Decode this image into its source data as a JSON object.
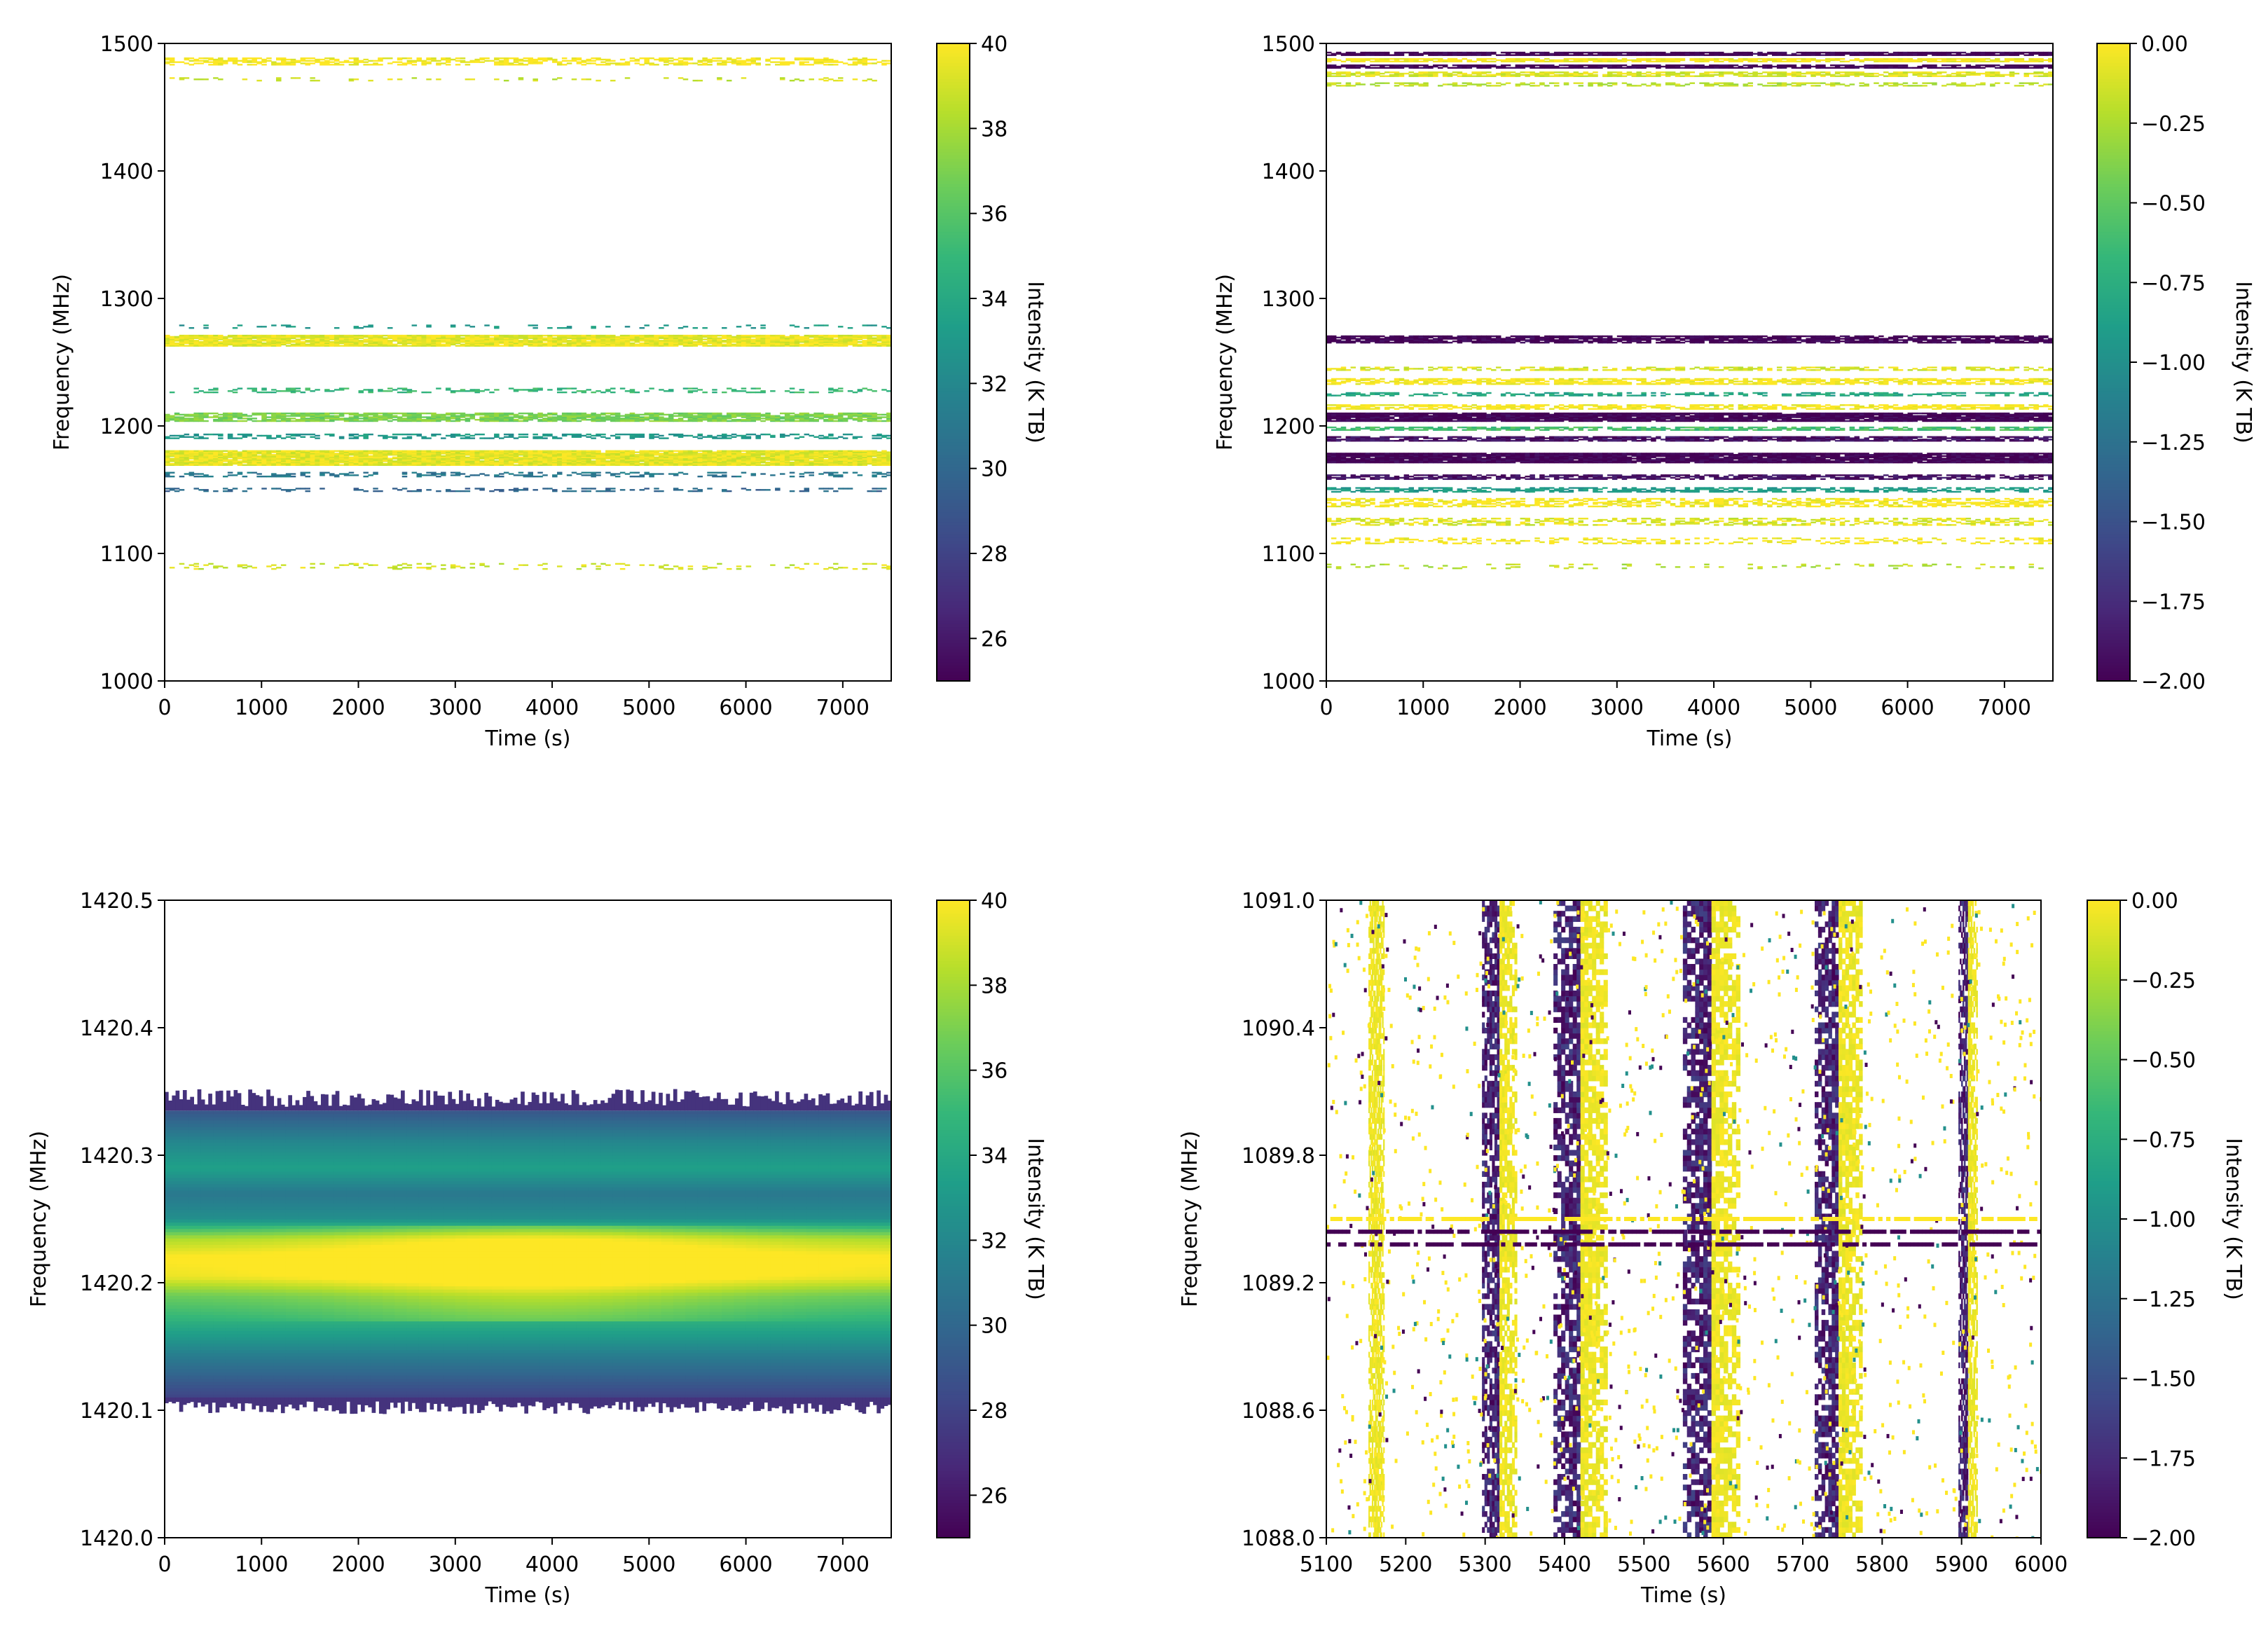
{
  "chart_data": [
    {
      "type": "heatmap",
      "panel": "top-left",
      "xlabel": "Time (s)",
      "ylabel": "Frequency (MHz)",
      "xlim": [
        0,
        7500
      ],
      "ylim": [
        1000,
        1500
      ],
      "xticks": [
        0,
        1000,
        2000,
        3000,
        4000,
        5000,
        6000,
        7000
      ],
      "yticks": [
        1000,
        1100,
        1200,
        1300,
        1400,
        1500
      ],
      "colorbar": {
        "label": "Intensity (K TB)",
        "range": [
          25,
          40
        ],
        "ticks": [
          "26",
          "28",
          "30",
          "32",
          "34",
          "36",
          "38",
          "40"
        ],
        "tick_values": [
          26,
          28,
          30,
          32,
          34,
          36,
          38,
          40
        ]
      },
      "colormap": "viridis",
      "bands": [
        {
          "center": 1486,
          "width": 6,
          "value": 40,
          "density": 0.55
        },
        {
          "center": 1472,
          "width": 3,
          "value": 39,
          "density": 0.15
        },
        {
          "center": 1267,
          "width": 9,
          "value": 39.5,
          "density": 0.95
        },
        {
          "center": 1278,
          "width": 3,
          "value": 33,
          "density": 0.12
        },
        {
          "center": 1228,
          "width": 4,
          "value": 35,
          "density": 0.3
        },
        {
          "center": 1207,
          "width": 7,
          "value": 37,
          "density": 0.8
        },
        {
          "center": 1192,
          "width": 4,
          "value": 33,
          "density": 0.45
        },
        {
          "center": 1175,
          "width": 12,
          "value": 39.5,
          "density": 0.97
        },
        {
          "center": 1162,
          "width": 4,
          "value": 31,
          "density": 0.35
        },
        {
          "center": 1150,
          "width": 3,
          "value": 30,
          "density": 0.3
        },
        {
          "center": 1090,
          "width": 5,
          "value": 39,
          "density": 0.15
        }
      ]
    },
    {
      "type": "heatmap",
      "panel": "top-right",
      "xlabel": "Time (s)",
      "ylabel": "Frequency (MHz)",
      "xlim": [
        0,
        7500
      ],
      "ylim": [
        1000,
        1500
      ],
      "xticks": [
        0,
        1000,
        2000,
        3000,
        4000,
        5000,
        6000,
        7000
      ],
      "yticks": [
        1000,
        1100,
        1200,
        1300,
        1400,
        1500
      ],
      "colorbar": {
        "label": "Intensity (K TB)",
        "range": [
          -2.0,
          0.0
        ],
        "ticks": [
          "0.00",
          "−0.25",
          "−0.50",
          "−0.75",
          "−1.00",
          "−1.25",
          "−1.50",
          "−1.75",
          "−2.00"
        ],
        "tick_values": [
          0.0,
          -0.25,
          -0.5,
          -0.75,
          -1.0,
          -1.25,
          -1.5,
          -1.75,
          -2.0
        ]
      },
      "colormap": "viridis",
      "bands": [
        {
          "center": 1492,
          "width": 3,
          "value": -2.0,
          "density": 0.9
        },
        {
          "center": 1487,
          "width": 3,
          "value": 0.0,
          "density": 0.8
        },
        {
          "center": 1482,
          "width": 3,
          "value": -2.0,
          "density": 0.8
        },
        {
          "center": 1476,
          "width": 4,
          "value": -0.1,
          "density": 0.7
        },
        {
          "center": 1468,
          "width": 3,
          "value": -0.2,
          "density": 0.5
        },
        {
          "center": 1268,
          "width": 6,
          "value": -2.0,
          "density": 0.85
        },
        {
          "center": 1245,
          "width": 3,
          "value": -0.1,
          "density": 0.5
        },
        {
          "center": 1235,
          "width": 5,
          "value": 0.0,
          "density": 0.7
        },
        {
          "center": 1225,
          "width": 3,
          "value": -0.8,
          "density": 0.5
        },
        {
          "center": 1215,
          "width": 4,
          "value": 0.0,
          "density": 0.7
        },
        {
          "center": 1207,
          "width": 7,
          "value": -2.0,
          "density": 0.95
        },
        {
          "center": 1198,
          "width": 3,
          "value": -0.6,
          "density": 0.7
        },
        {
          "center": 1190,
          "width": 4,
          "value": -1.9,
          "density": 0.8
        },
        {
          "center": 1175,
          "width": 8,
          "value": -2.0,
          "density": 0.97
        },
        {
          "center": 1160,
          "width": 4,
          "value": -1.9,
          "density": 0.7
        },
        {
          "center": 1150,
          "width": 4,
          "value": -0.9,
          "density": 0.6
        },
        {
          "center": 1140,
          "width": 7,
          "value": 0.0,
          "density": 0.55
        },
        {
          "center": 1125,
          "width": 6,
          "value": -0.1,
          "density": 0.45
        },
        {
          "center": 1110,
          "width": 5,
          "value": 0.0,
          "density": 0.3
        },
        {
          "center": 1090,
          "width": 4,
          "value": -0.2,
          "density": 0.15
        }
      ]
    },
    {
      "type": "heatmap",
      "panel": "bottom-left",
      "xlabel": "Time (s)",
      "ylabel": "Frequency (MHz)",
      "xlim": [
        0,
        7500
      ],
      "ylim": [
        1420.0,
        1420.5
      ],
      "xticks": [
        0,
        1000,
        2000,
        3000,
        4000,
        5000,
        6000,
        7000
      ],
      "yticks": [
        "1420.0",
        "1420.1",
        "1420.2",
        "1420.3",
        "1420.4",
        "1420.5"
      ],
      "ytick_values": [
        1420.0,
        1420.1,
        1420.2,
        1420.3,
        1420.4,
        1420.5
      ],
      "colorbar": {
        "label": "Intensity (K TB)",
        "range": [
          25,
          40
        ],
        "ticks": [
          "26",
          "28",
          "30",
          "32",
          "34",
          "36",
          "38",
          "40"
        ],
        "tick_values": [
          26,
          28,
          30,
          32,
          34,
          36,
          38,
          40
        ]
      },
      "colormap": "viridis",
      "data_extent": {
        "fmin": 1420.11,
        "fmax": 1420.335
      },
      "profile": [
        {
          "f": 1420.11,
          "value": 28.0
        },
        {
          "f": 1420.14,
          "value": 31.0
        },
        {
          "f": 1420.17,
          "value": 34.5
        },
        {
          "f": 1420.19,
          "value": 36.5
        },
        {
          "f": 1420.205,
          "value": 39.5
        },
        {
          "f": 1420.22,
          "value": 40.0
        },
        {
          "f": 1420.235,
          "value": 38.0
        },
        {
          "f": 1420.25,
          "value": 32.5
        },
        {
          "f": 1420.27,
          "value": 31.0
        },
        {
          "f": 1420.29,
          "value": 33.5
        },
        {
          "f": 1420.31,
          "value": 32.0
        },
        {
          "f": 1420.335,
          "value": 29.0
        }
      ]
    },
    {
      "type": "heatmap",
      "panel": "bottom-right",
      "xlabel": "Time (s)",
      "ylabel": "Frequency (MHz)",
      "xlim": [
        5100,
        6000
      ],
      "ylim": [
        1088.0,
        1091.0
      ],
      "xticks": [
        5100,
        5200,
        5300,
        5400,
        5500,
        5600,
        5700,
        5800,
        5900,
        6000
      ],
      "yticks": [
        "1088.0",
        "1088.6",
        "1089.2",
        "1089.8",
        "1090.4",
        "1091.0"
      ],
      "ytick_values": [
        1088.0,
        1088.6,
        1089.2,
        1089.8,
        1090.4,
        1091.0
      ],
      "colorbar": {
        "label": "Intensity (K TB)",
        "range": [
          -2.0,
          0.0
        ],
        "ticks": [
          "0.00",
          "−0.25",
          "−0.50",
          "−0.75",
          "−1.00",
          "−1.25",
          "−1.50",
          "−1.75",
          "−2.00"
        ],
        "tick_values": [
          0.0,
          -0.25,
          -0.5,
          -0.75,
          -1.0,
          -1.25,
          -1.5,
          -1.75,
          -2.0
        ]
      },
      "colormap": "viridis",
      "stripes": [
        {
          "t": 5163,
          "width": 10,
          "value": 0.0,
          "dark_core": false
        },
        {
          "t": 5318,
          "width": 22,
          "value": 0.0,
          "dark_core": true
        },
        {
          "t": 5420,
          "width": 34,
          "value": -2.0,
          "dark_core": true
        },
        {
          "t": 5585,
          "width": 36,
          "value": -2.0,
          "dark_core": true
        },
        {
          "t": 5745,
          "width": 30,
          "value": 0.0,
          "dark_core": true
        },
        {
          "t": 5908,
          "width": 12,
          "value": 0.0,
          "dark_core": true
        }
      ],
      "hbands": [
        {
          "f": 1089.5,
          "value": 0.0
        },
        {
          "f": 1089.44,
          "value": -2.0
        },
        {
          "f": 1089.38,
          "value": -2.0
        }
      ]
    }
  ]
}
